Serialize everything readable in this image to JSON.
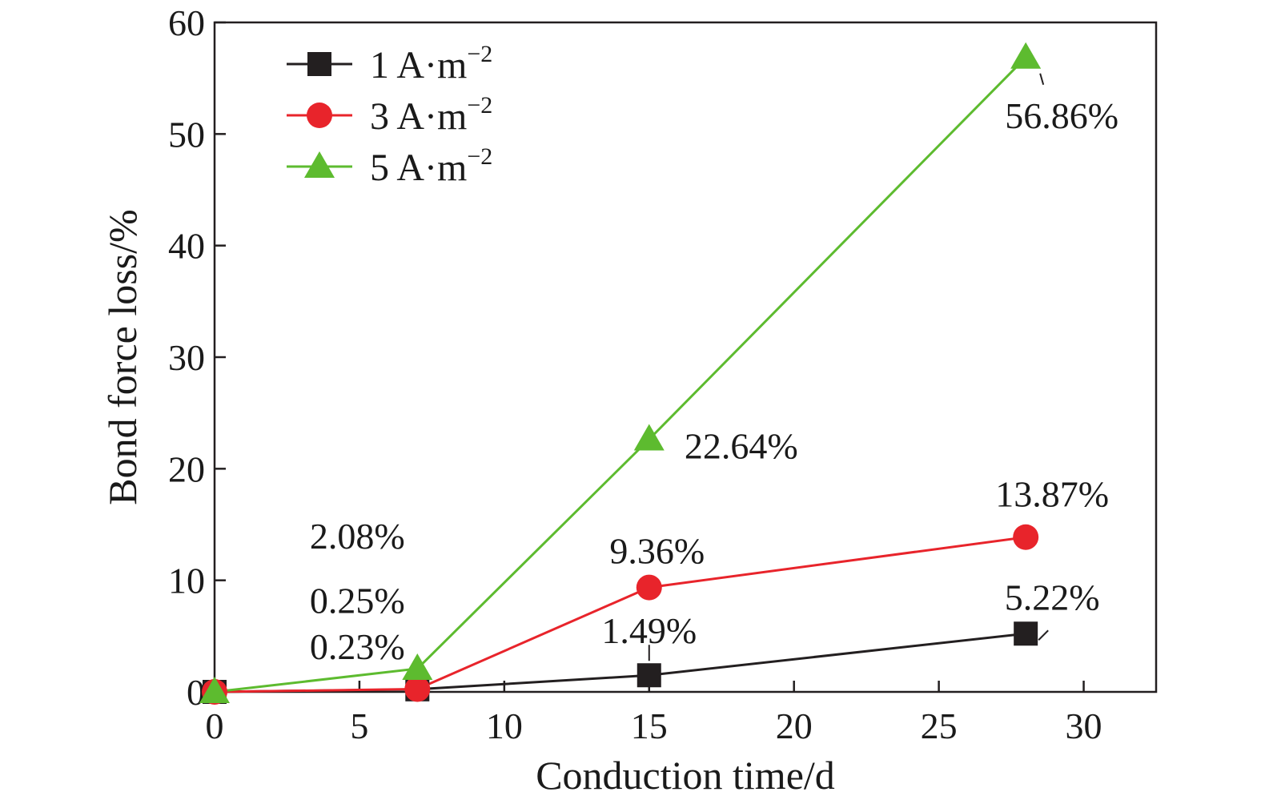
{
  "chart_data": {
    "type": "line",
    "xlabel": "Conduction time/d",
    "ylabel": "Bond force loss/%",
    "xlim": [
      0,
      32.5
    ],
    "ylim": [
      0,
      60
    ],
    "xticks": [
      0,
      5,
      10,
      15,
      20,
      25,
      30
    ],
    "yticks": [
      0,
      10,
      20,
      30,
      40,
      50,
      60
    ],
    "x_tick_labels": [
      "0",
      "5",
      "10",
      "15",
      "20",
      "25",
      "30"
    ],
    "y_tick_labels": [
      "0",
      "10",
      "20",
      "30",
      "40",
      "50",
      "60"
    ],
    "legend_position": "top-left",
    "grid": false,
    "series": [
      {
        "key": "s1",
        "name": "1 A·m",
        "name_superscript": "−2",
        "color": "#231f20",
        "marker": "square",
        "x": [
          0,
          7,
          15,
          28
        ],
        "values": [
          0,
          0.23,
          1.49,
          5.22
        ]
      },
      {
        "key": "s3",
        "name": "3 A·m",
        "name_superscript": "−2",
        "color": "#e8242b",
        "marker": "circle",
        "x": [
          0,
          7,
          15,
          28
        ],
        "values": [
          0,
          0.25,
          9.36,
          13.87
        ]
      },
      {
        "key": "s5",
        "name": "5 A·m",
        "name_superscript": "−2",
        "color": "#5dbb2f",
        "marker": "triangle",
        "x": [
          0,
          7,
          15,
          28
        ],
        "values": [
          0,
          2.08,
          22.64,
          56.86
        ]
      }
    ],
    "annotations": [
      {
        "text": "2.08%",
        "series": "5 A·m−2",
        "x": 7
      },
      {
        "text": "0.25%",
        "series": "3 A·m−2",
        "x": 7
      },
      {
        "text": "0.23%",
        "series": "1 A·m−2",
        "x": 7
      },
      {
        "text": "1.49%",
        "series": "1 A·m−2",
        "x": 15
      },
      {
        "text": "9.36%",
        "series": "3 A·m−2",
        "x": 15
      },
      {
        "text": "22.64%",
        "series": "5 A·m−2",
        "x": 15
      },
      {
        "text": "5.22%",
        "series": "1 A·m−2",
        "x": 28
      },
      {
        "text": "13.87%",
        "series": "3 A·m−2",
        "x": 28
      },
      {
        "text": "56.86%",
        "series": "5 A·m−2",
        "x": 28
      }
    ]
  }
}
